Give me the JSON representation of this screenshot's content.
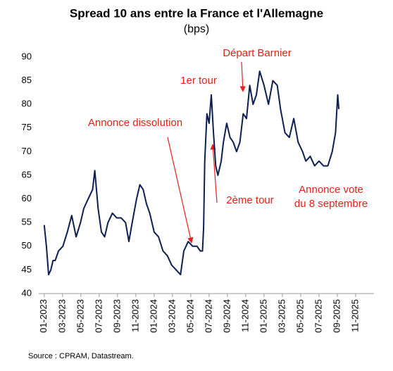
{
  "chart_data": {
    "type": "line",
    "title": "Spread 10 ans entre la France et l'Allemagne",
    "subtitle": "(bps)",
    "source": "Source : CPRAM, Datastream.",
    "annotations": [
      "Annonce dissolution",
      "1er tour",
      "2ème tour",
      "Départ Barnier",
      "Annonce vote",
      "du 8 septembre"
    ],
    "series": [
      {
        "name": "Spread",
        "color": "#0d1f4f",
        "x": [
          2023.0,
          2023.02,
          2023.04,
          2023.06,
          2023.08,
          2023.1,
          2023.13,
          2023.17,
          2023.21,
          2023.25,
          2023.29,
          2023.33,
          2023.36,
          2023.4,
          2023.44,
          2023.46,
          2023.49,
          2023.52,
          2023.55,
          2023.58,
          2023.62,
          2023.66,
          2023.7,
          2023.74,
          2023.77,
          2023.8,
          2023.84,
          2023.87,
          2023.9,
          2023.93,
          2023.96,
          2024.0,
          2024.04,
          2024.08,
          2024.12,
          2024.16,
          2024.2,
          2024.24,
          2024.27,
          2024.31,
          2024.35,
          2024.39,
          2024.42,
          2024.44,
          2024.45,
          2024.46,
          2024.48,
          2024.5,
          2024.52,
          2024.54,
          2024.56,
          2024.58,
          2024.61,
          2024.63,
          2024.66,
          2024.69,
          2024.72,
          2024.75,
          2024.78,
          2024.81,
          2024.84,
          2024.87,
          2024.9,
          2024.93,
          2024.96,
          2025.0,
          2025.04,
          2025.08,
          2025.12,
          2025.15,
          2025.19,
          2025.23,
          2025.27,
          2025.31,
          2025.35,
          2025.38,
          2025.42,
          2025.46,
          2025.5,
          2025.54,
          2025.58,
          2025.62,
          2025.65,
          2025.67,
          2025.68
        ],
        "values": [
          54.5,
          50,
          44,
          45,
          47,
          47,
          49,
          50,
          53,
          56.5,
          52,
          55,
          58,
          60,
          62,
          66,
          58,
          53,
          52,
          55,
          57,
          56,
          56,
          55,
          51,
          55,
          60,
          63,
          62,
          59,
          57,
          53,
          52,
          49,
          48,
          46,
          45,
          44,
          49,
          51,
          50,
          50,
          49,
          49,
          54,
          68,
          78,
          76,
          82,
          74,
          67,
          65,
          68,
          72,
          76,
          73,
          72,
          70,
          72,
          78,
          77,
          84,
          80,
          82,
          87,
          84,
          80,
          85,
          84,
          79,
          74,
          73,
          77,
          72,
          70,
          68,
          69,
          67,
          68,
          67,
          67,
          70,
          74,
          82,
          79
        ]
      }
    ],
    "xlim": [
      2022.95,
      2026.0
    ],
    "xticks": [
      {
        "value": 2023.0,
        "label": "01-2023"
      },
      {
        "value": 2023.1667,
        "label": "03-2023"
      },
      {
        "value": 2023.3333,
        "label": "05-2023"
      },
      {
        "value": 2023.5,
        "label": "07-2023"
      },
      {
        "value": 2023.6667,
        "label": "09-2023"
      },
      {
        "value": 2023.8333,
        "label": "11-2023"
      },
      {
        "value": 2024.0,
        "label": "01-2024"
      },
      {
        "value": 2024.1667,
        "label": "03-2024"
      },
      {
        "value": 2024.3333,
        "label": "05-2024"
      },
      {
        "value": 2024.5,
        "label": "07-2024"
      },
      {
        "value": 2024.6667,
        "label": "09-2024"
      },
      {
        "value": 2024.8333,
        "label": "11-2024"
      },
      {
        "value": 2025.0,
        "label": "01-2025"
      },
      {
        "value": 2025.1667,
        "label": "03-2025"
      },
      {
        "value": 2025.3333,
        "label": "05-2025"
      },
      {
        "value": 2025.5,
        "label": "07-2025"
      },
      {
        "value": 2025.6667,
        "label": "09-2025"
      },
      {
        "value": 2025.8333,
        "label": "11-2025"
      }
    ],
    "ylim": [
      40,
      90
    ],
    "yticks": [
      40,
      45,
      50,
      55,
      60,
      65,
      70,
      75,
      80,
      85,
      90
    ],
    "grid": false
  }
}
